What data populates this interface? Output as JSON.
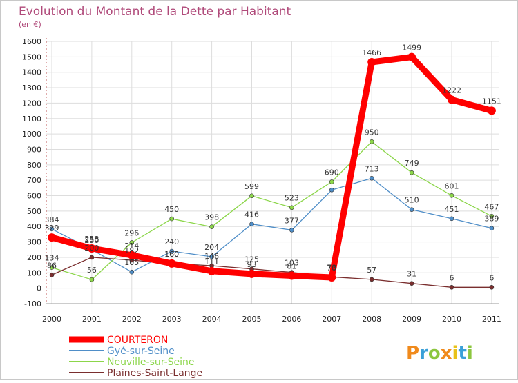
{
  "colors": {
    "background": "#ffffff",
    "frame": "#c8c8c8",
    "title": "#b04a7a",
    "grid": "#dddddd"
  },
  "chart_data": {
    "type": "line",
    "title": "Evolution du Montant de la Dette par Habitant",
    "subtitle": "(en €)",
    "xlabel": "",
    "ylabel": "",
    "x": [
      "2000",
      "2001",
      "2002",
      "2003",
      "2004",
      "2005",
      "2006",
      "2007",
      "2008",
      "2009",
      "2010",
      "2011"
    ],
    "ylim": [
      -100,
      1600
    ],
    "yticks": [
      -100,
      0,
      100,
      200,
      300,
      400,
      500,
      600,
      700,
      800,
      900,
      1000,
      1100,
      1200,
      1300,
      1400,
      1500,
      1600
    ],
    "grid": true,
    "legend_position": "bottom-left",
    "series": [
      {
        "name": "COURTERON",
        "color": "#ff0000",
        "values": [
          329,
          258,
          214,
          160,
          111,
          93,
          81,
          70,
          1466,
          1499,
          1222,
          1151
        ]
      },
      {
        "name": "Gyé-sur-Seine",
        "color": "#4f8ec8",
        "values": [
          384,
          250,
          105,
          240,
          204,
          416,
          377,
          637,
          713,
          510,
          451,
          389
        ]
      },
      {
        "name": "Neuville-sur-Seine",
        "color": "#8cd64a",
        "values": [
          134,
          56,
          296,
          450,
          398,
          599,
          523,
          690,
          950,
          749,
          601,
          467
        ]
      },
      {
        "name": "Plaines-Saint-Lange",
        "color": "#7a2e2e",
        "values": [
          86,
          200,
          182,
          160,
          146,
          125,
          103,
          73,
          57,
          31,
          6,
          6
        ]
      }
    ],
    "data_labels": {
      "COURTERON": [
        "329",
        "258",
        "214",
        "160",
        "111",
        "93",
        "81",
        "70",
        "1466",
        "1499",
        "1222",
        "1151"
      ],
      "Gyé-sur-Seine": [
        "384",
        "250",
        "105",
        "240",
        "204",
        "416",
        "377",
        "",
        "713",
        "510",
        "451",
        "389"
      ],
      "Neuville-sur-Seine": [
        "134",
        "56",
        "296",
        "450",
        "398",
        "599",
        "523",
        "690",
        "950",
        "749",
        "601",
        "467"
      ],
      "Plaines-Saint-Lange": [
        "86",
        "200",
        "182",
        "160",
        "146",
        "125",
        "103",
        "73",
        "57",
        "31",
        "6",
        "6"
      ]
    }
  },
  "watermark": {
    "text": "Proxiti"
  }
}
